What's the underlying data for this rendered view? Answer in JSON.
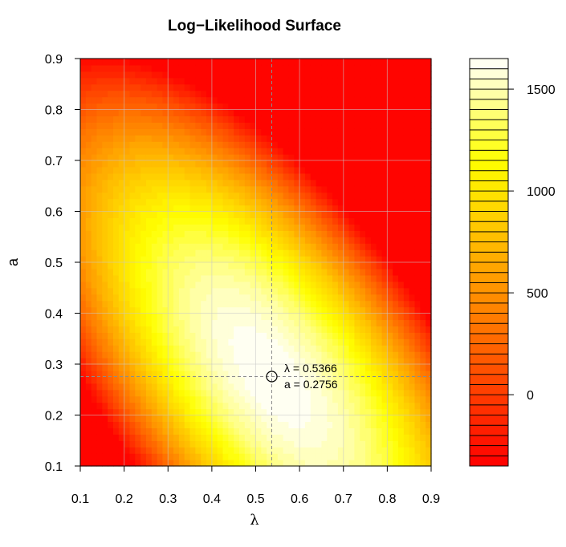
{
  "chart_data": {
    "type": "heatmap",
    "title": "Log−Likelihood Surface",
    "xlabel": "λ",
    "ylabel": "a",
    "xlim": [
      0.1,
      0.9
    ],
    "ylim": [
      0.1,
      0.9
    ],
    "x_ticks": [
      "0.1",
      "0.2",
      "0.3",
      "0.4",
      "0.5",
      "0.6",
      "0.7",
      "0.8",
      "0.9"
    ],
    "y_ticks": [
      "0.1",
      "0.2",
      "0.3",
      "0.4",
      "0.5",
      "0.6",
      "0.7",
      "0.8",
      "0.9"
    ],
    "grid": true,
    "maximum": {
      "lambda": 0.5366,
      "a": 0.2756,
      "label_lambda": "λ = 0.5366",
      "label_a": "a = 0.2756"
    },
    "surface": {
      "peak_value": 1650,
      "min_value": -350,
      "x_range": [
        0.1,
        0.9
      ],
      "y_range": [
        0.1,
        0.9
      ]
    },
    "colorbar": {
      "min": -350,
      "max": 1650,
      "levels": 40,
      "ticks": [
        0,
        500,
        1000,
        1500
      ],
      "tick_labels": [
        "0",
        "500",
        "1000",
        "1500"
      ],
      "low_color": "#ff0000",
      "high_color": "#ffffff"
    }
  }
}
